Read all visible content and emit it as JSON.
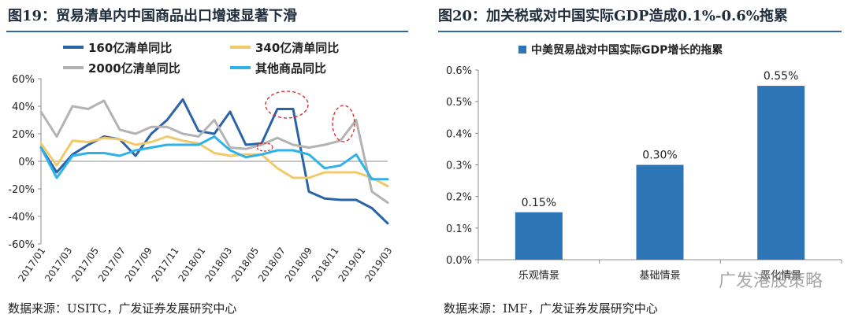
{
  "left_panel": {
    "title": "图19：贸易清单内中国商品出口增速显著下滑",
    "source": "数据来源：USITC，广发证券发展研究中心"
  },
  "right_panel": {
    "title": "图20：加关税或对中国实际GDP造成0.1%-0.6%拖累",
    "source": "数据来源：IMF，广发证券发展研究中心"
  },
  "watermark": "广发港股策略",
  "chart_data": [
    {
      "type": "line",
      "ylim": [
        -60,
        60
      ],
      "yticks": [
        -60,
        -40,
        -20,
        0,
        20,
        40,
        60
      ],
      "ytick_labels": [
        "-60%",
        "-40%",
        "-20%",
        "0%",
        "20%",
        "40%",
        "60%"
      ],
      "x_labels": [
        "2017/01",
        "2017/03",
        "2017/05",
        "2017/07",
        "2017/09",
        "2017/11",
        "2018/01",
        "2018/03",
        "2018/05",
        "2018/07",
        "2018/09",
        "2018/11",
        "2019/01",
        "2019/03"
      ],
      "legend_position": "top",
      "series": [
        {
          "name": "160亿清单同比",
          "color": "#2a63a8",
          "values": [
            10,
            -8,
            5,
            12,
            18,
            16,
            4,
            20,
            30,
            45,
            22,
            20,
            36,
            12,
            13,
            38,
            38,
            -22,
            -27,
            -28,
            -28,
            -34,
            -45
          ]
        },
        {
          "name": "340亿清单同比",
          "color": "#f1c96b",
          "values": [
            13,
            -3,
            15,
            14,
            17,
            16,
            12,
            14,
            18,
            15,
            13,
            6,
            4,
            5,
            5,
            -5,
            -12,
            -12,
            -8,
            -8,
            -8,
            -12,
            -18
          ]
        },
        {
          "name": "2000亿清单同比",
          "color": "#b3b3b3",
          "values": [
            36,
            18,
            40,
            38,
            44,
            23,
            20,
            25,
            25,
            20,
            18,
            30,
            10,
            9,
            12,
            17,
            12,
            10,
            12,
            15,
            30,
            -22,
            -30
          ]
        },
        {
          "name": "其他商品同比",
          "color": "#2eb2e8",
          "values": [
            10,
            -12,
            4,
            6,
            6,
            4,
            8,
            10,
            12,
            12,
            12,
            18,
            8,
            3,
            5,
            8,
            8,
            5,
            -5,
            -3,
            5,
            -13,
            -13
          ]
        }
      ]
    },
    {
      "type": "bar",
      "title": "中美贸易战对中国实际GDP增长的拖累",
      "categories": [
        "乐观情景",
        "基础情景",
        "恶化情景"
      ],
      "values": [
        0.15,
        0.3,
        0.55
      ],
      "value_labels": [
        "0.15%",
        "0.30%",
        "0.55%"
      ],
      "ylim": [
        0,
        0.6
      ],
      "yticks": [
        0,
        0.1,
        0.2,
        0.3,
        0.4,
        0.5,
        0.6
      ],
      "ytick_labels": [
        "0.0%",
        "0.1%",
        "0.2%",
        "0.3%",
        "0.4%",
        "0.5%",
        "0.6%"
      ],
      "color": "#2e75b6"
    }
  ]
}
